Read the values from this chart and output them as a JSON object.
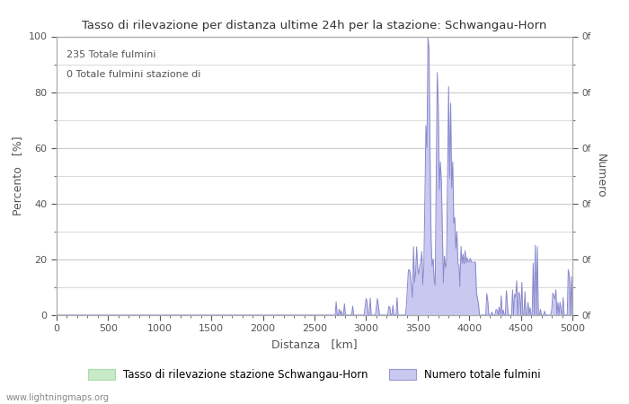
{
  "title": "Tasso di rilevazione per distanza ultime 24h per la stazione: Schwangau-Horn",
  "xlabel": "Distanza   [km]",
  "ylabel_left": "Percento   [%]",
  "ylabel_right": "Numero",
  "annotation_line1": "235 Totale fulmini",
  "annotation_line2": "0 Totale fulmini stazione di",
  "legend_label1": "Tasso di rilevazione stazione Schwangau-Horn",
  "legend_label2": "Numero totale fulmini",
  "xlim": [
    0,
    5000
  ],
  "ylim": [
    0,
    100
  ],
  "x_ticks": [
    0,
    500,
    1000,
    1500,
    2000,
    2500,
    3000,
    3500,
    4000,
    4500,
    5000
  ],
  "y_ticks_left": [
    0,
    20,
    40,
    60,
    80,
    100
  ],
  "watermark": "www.lightningmaps.org",
  "fill_color_green": "#c8eac8",
  "fill_color_blue": "#c8c8f0",
  "line_color": "#8888cc",
  "background_color": "#ffffff",
  "grid_color": "#cccccc",
  "right_axis_labels": [
    "0f",
    "0f",
    "0f",
    "0f",
    "0f",
    "0f"
  ],
  "right_axis_ticks": [
    0,
    20,
    40,
    60,
    80,
    100
  ]
}
